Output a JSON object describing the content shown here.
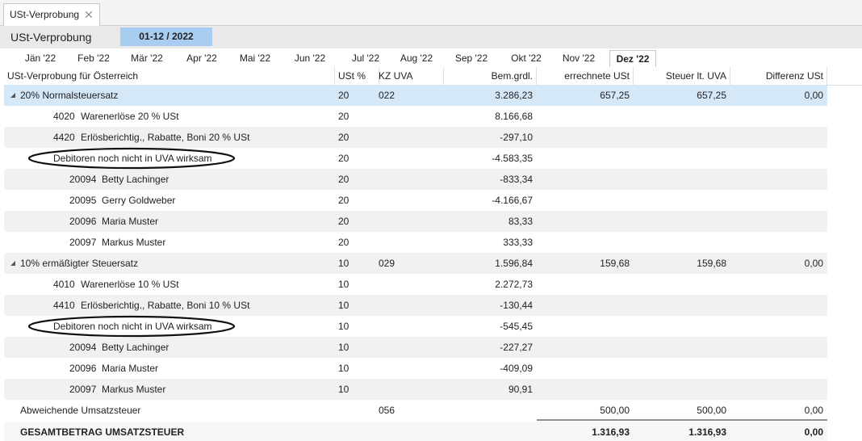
{
  "tab": {
    "title": "USt-Verprobung"
  },
  "header": {
    "title": "USt-Verprobung",
    "period": "01-12 / 2022"
  },
  "months": [
    "Jän '22",
    "Feb '22",
    "Mär '22",
    "Apr '22",
    "Mai '22",
    "Jun '22",
    "Jul '22",
    "Aug '22",
    "Sep '22",
    "Okt '22",
    "Nov '22",
    "Dez '22"
  ],
  "columns": {
    "label": "USt-Verprobung für Österreich",
    "ust": "USt %",
    "kz": "KZ UVA",
    "bem": "Bem.grdl.",
    "errechnet": "errechnete USt",
    "steuer": "Steuer lt. UVA",
    "differenz": "Differenz USt"
  },
  "groups": [
    {
      "label": "20% Normalsteuersatz",
      "ust": "20",
      "kz": "022",
      "bem": "3.286,23",
      "errechnet": "657,25",
      "steuer": "657,25",
      "differenz": "0,00",
      "accounts": [
        {
          "account": "4020",
          "label": "Warenerlöse 20 % USt",
          "ust": "20",
          "bem": "8.166,68"
        },
        {
          "account": "4420",
          "label": "Erlösberichtig., Rabatte, Boni 20 % USt",
          "ust": "20",
          "bem": "-297,10"
        }
      ],
      "debitoren": {
        "label": "Debitoren noch nicht in UVA wirksam",
        "ust": "20",
        "bem": "-4.583,35",
        "items": [
          {
            "account": "20094",
            "label": "Betty Lachinger",
            "ust": "20",
            "bem": "-833,34"
          },
          {
            "account": "20095",
            "label": "Gerry Goldweber",
            "ust": "20",
            "bem": "-4.166,67"
          },
          {
            "account": "20096",
            "label": "Maria Muster",
            "ust": "20",
            "bem": "83,33"
          },
          {
            "account": "20097",
            "label": "Markus Muster",
            "ust": "20",
            "bem": "333,33"
          }
        ]
      }
    },
    {
      "label": "10% ermäßigter Steuersatz",
      "ust": "10",
      "kz": "029",
      "bem": "1.596,84",
      "errechnet": "159,68",
      "steuer": "159,68",
      "differenz": "0,00",
      "accounts": [
        {
          "account": "4010",
          "label": "Warenerlöse 10 % USt",
          "ust": "10",
          "bem": "2.272,73"
        },
        {
          "account": "4410",
          "label": "Erlösberichtig., Rabatte, Boni 10 % USt",
          "ust": "10",
          "bem": "-130,44"
        }
      ],
      "debitoren": {
        "label": "Debitoren noch nicht in UVA wirksam",
        "ust": "10",
        "bem": "-545,45",
        "items": [
          {
            "account": "20094",
            "label": "Betty Lachinger",
            "ust": "10",
            "bem": "-227,27"
          },
          {
            "account": "20096",
            "label": "Maria Muster",
            "ust": "10",
            "bem": "-409,09"
          },
          {
            "account": "20097",
            "label": "Markus Muster",
            "ust": "10",
            "bem": "90,91"
          }
        ]
      }
    }
  ],
  "abweichend": {
    "label": "Abweichende Umsatzsteuer",
    "kz": "056",
    "errechnet": "500,00",
    "steuer": "500,00",
    "differenz": "0,00"
  },
  "total": {
    "label": "GESAMTBETRAG UMSATZSTEUER",
    "errechnet": "1.316,93",
    "steuer": "1.316,93",
    "differenz": "0,00"
  }
}
